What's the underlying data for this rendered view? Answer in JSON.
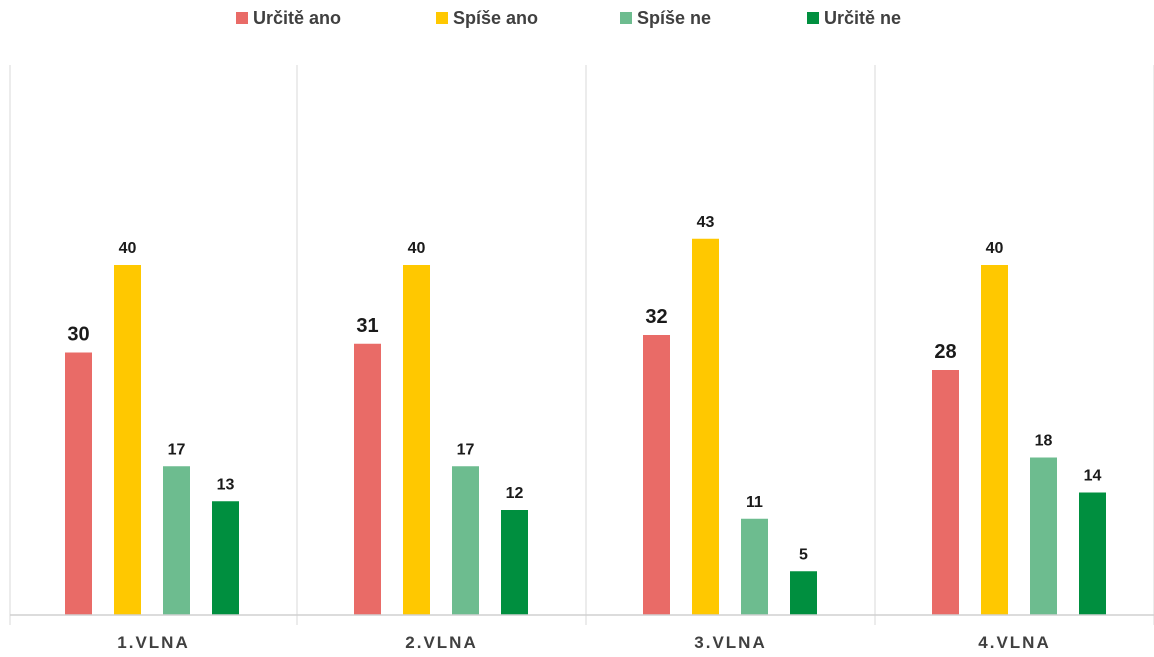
{
  "chart_data": {
    "type": "bar",
    "categories": [
      "1.VLNA",
      "2.VLNA",
      "3.VLNA",
      "4.VLNA"
    ],
    "series": [
      {
        "name": "Určitě ano",
        "color": "#E96B67",
        "values": [
          30,
          31,
          32,
          28
        ]
      },
      {
        "name": "Spíše ano",
        "color": "#FFC800",
        "values": [
          40,
          40,
          43,
          40
        ]
      },
      {
        "name": "Spíše ne",
        "color": "#6DBC8F",
        "values": [
          17,
          17,
          11,
          18
        ]
      },
      {
        "name": "Určitě ne",
        "color": "#008F3F",
        "values": [
          13,
          12,
          5,
          14
        ]
      }
    ],
    "legend_position": "top",
    "grid": false,
    "data_labels": true
  }
}
